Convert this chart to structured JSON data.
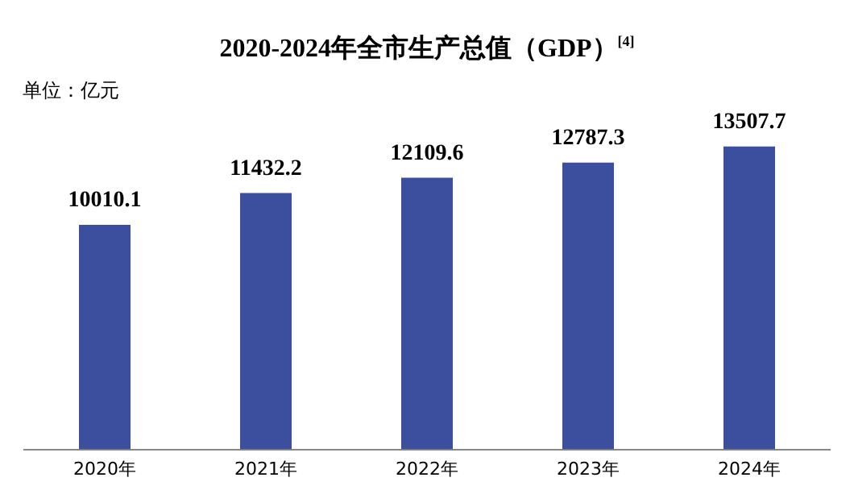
{
  "chart_data": {
    "type": "bar",
    "title": "2020-2024年全市生产总值（GDP）$^{[4]}$",
    "ylabel": "单位：亿元",
    "categories": [
      "2020年",
      "2021年",
      "2022年",
      "2023年",
      "2024年"
    ],
    "values": [
      10010.1,
      11432.2,
      12109.6,
      12787.3,
      13507.7
    ],
    "color": "#3c4f9f",
    "data_labels": true,
    "grid": false,
    "legend": false
  }
}
